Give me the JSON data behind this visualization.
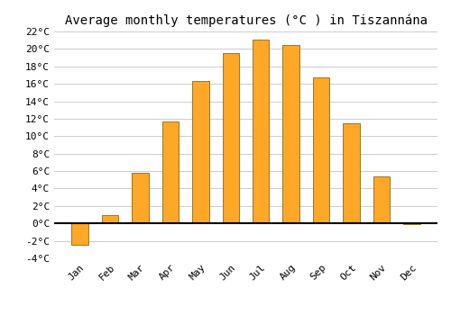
{
  "title": "Average monthly temperatures (°C ) in Tiszannána",
  "months": [
    "Jan",
    "Feb",
    "Mar",
    "Apr",
    "May",
    "Jun",
    "Jul",
    "Aug",
    "Sep",
    "Oct",
    "Nov",
    "Dec"
  ],
  "values": [
    -2.5,
    1.0,
    5.8,
    11.7,
    16.3,
    19.5,
    21.1,
    20.5,
    16.7,
    11.5,
    5.4,
    -0.1
  ],
  "bar_color": "#FFA726",
  "bar_edge_color": "#8B6914",
  "background_color": "#ffffff",
  "grid_color": "#cccccc",
  "ylim": [
    -4,
    22
  ],
  "yticks": [
    -4,
    -2,
    0,
    2,
    4,
    6,
    8,
    10,
    12,
    14,
    16,
    18,
    20,
    22
  ],
  "title_fontsize": 10,
  "tick_fontsize": 8,
  "bar_width": 0.55
}
